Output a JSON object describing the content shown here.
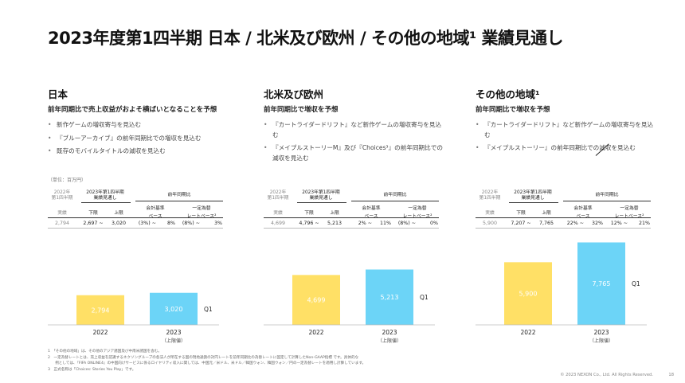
{
  "title": "2023年度第1四半期 日本 / 北米及び欧州 / その他の地域¹ 業績見通し",
  "unit_note": "（単位：百万円）",
  "table_headers": {
    "prev_year": "2022年",
    "prev_q": "第1四半期",
    "forecast": "2023年第1四半期",
    "forecast2": "業績見通し",
    "yoy": "前年同期比",
    "actual": "実績",
    "low": "下限",
    "high": "上限",
    "accounting1": "会計基準",
    "accounting2": "ベース",
    "fx1": "一定為替",
    "fx2": "レートベース²"
  },
  "regions": [
    {
      "name": "日本",
      "subtitle": "前年同期比で売上収益がおよそ横ばいとなることを予想",
      "bullets": [
        "新作ゲームの増収寄与を見込む",
        "『ブルーアーカイブ』の前年同期比での増収を見込む",
        "既存のモバイルタイトルの減収を見込む"
      ],
      "table": {
        "prev": "2,794",
        "low": "2,697 ~",
        "high": "3,020",
        "acc_low": "(3%) ~",
        "acc_high": "8%",
        "fx_low": "(8%) ~",
        "fx_high": "3%"
      }
    },
    {
      "name": "北米及び欧州",
      "subtitle": "前年同期比で増収を予想",
      "bullets": [
        "『カートライダードリフト』など新作ゲームの増収寄与を見込む",
        "『メイプルストーリーM』及び『Choices³』の前年同期比での減収を見込む"
      ],
      "table": {
        "prev": "4,699",
        "low": "4,796 ~",
        "high": "5,213",
        "acc_low": "2% ~",
        "acc_high": "11%",
        "fx_low": "(8%) ~",
        "fx_high": "0%"
      }
    },
    {
      "name": "その他の地域¹",
      "subtitle": "前年同期比で増収を予想",
      "bullets": [
        "『カートライダードリフト』など新作ゲームの増収寄与を見込む",
        "『メイプルストーリー』の前年同期比での減収を見込む"
      ],
      "table": {
        "prev": "5,900",
        "low": "7,207 ~",
        "high": "7,765",
        "acc_low": "22% ~",
        "acc_high": "32%",
        "fx_low": "12% ~",
        "fx_high": "21%"
      }
    }
  ],
  "chart_data": [
    {
      "type": "bar",
      "categories": [
        "2022",
        "2023"
      ],
      "category_sub": [
        "",
        "（上限値）"
      ],
      "values": [
        2794,
        3020
      ],
      "value_labels": [
        "2,794",
        "3,020"
      ],
      "series_label": "Q1",
      "colors": [
        "#ffe066",
        "#6cd4f7"
      ],
      "ylim": [
        0,
        9000
      ]
    },
    {
      "type": "bar",
      "categories": [
        "2022",
        "2023"
      ],
      "category_sub": [
        "",
        "（上限値）"
      ],
      "values": [
        4699,
        5213
      ],
      "value_labels": [
        "4,699",
        "5,213"
      ],
      "series_label": "Q1",
      "colors": [
        "#ffe066",
        "#6cd4f7"
      ],
      "ylim": [
        0,
        9000
      ]
    },
    {
      "type": "bar",
      "categories": [
        "2022",
        "2023"
      ],
      "category_sub": [
        "",
        "（上限値）"
      ],
      "values": [
        5900,
        7765
      ],
      "value_labels": [
        "5,900",
        "7,765"
      ],
      "series_label": "Q1",
      "colors": [
        "#ffe066",
        "#6cd4f7"
      ],
      "ylim": [
        0,
        9000
      ]
    }
  ],
  "footnotes": [
    "1　「その他の地域」は、その他のアジア諸国及び中南米諸国を含む。",
    "2　一定為替レートとは、売上収益を認識するネクソングループの各法人が所在する国の現地通貨の対円レートを前年同期比の為替レートに固定して計算したNon-GAAP指標 です。具体的な",
    "　　例としては、『FIFA ONLINE4』の中国向けサービスに係るロイヤリティ収入に関しては、中国元／米ドル、米ドル／韓国ウォン、韓国ウォン／円の一定為替レートを適用し計算しています。",
    "3　正式名称は「Choices: Stories You Play」です。"
  ],
  "copyright": "© 2023 NEXON Co., Ltd. All Rights Reserved.",
  "page_number": "18"
}
